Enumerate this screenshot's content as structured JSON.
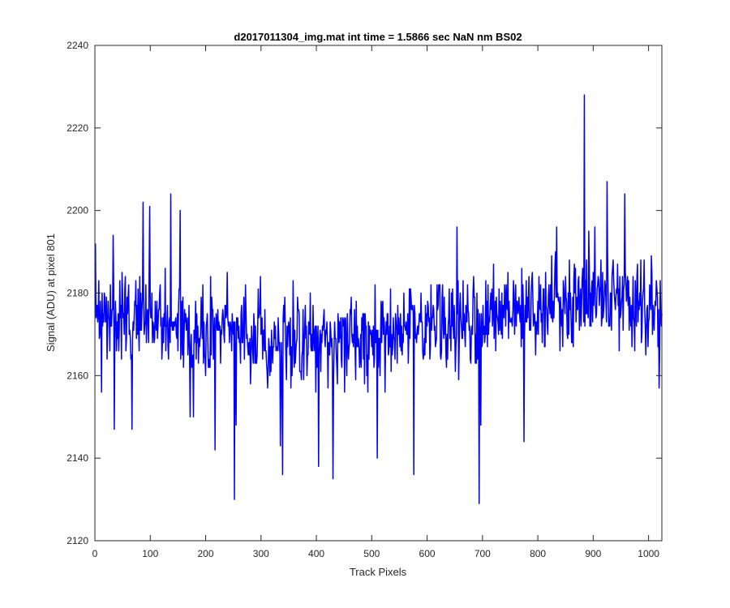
{
  "chart_data": {
    "type": "line",
    "title": "d2017011304_img.mat int time = 1.5866 sec  NaN nm BS02",
    "xlabel": "Track Pixels",
    "ylabel": "Signal (ADU) at pixel 801",
    "xlim": [
      0,
      1024
    ],
    "ylim": [
      2120,
      2240
    ],
    "xticks": [
      0,
      100,
      200,
      300,
      400,
      500,
      600,
      700,
      800,
      900,
      1000
    ],
    "yticks": [
      2120,
      2140,
      2160,
      2180,
      2200,
      2220,
      2240
    ],
    "grid": false,
    "legend": "none",
    "line_color": "#0000ff",
    "series": [
      {
        "x_start": 1,
        "x_step": 1,
        "y_mean": [
          [
            0,
            2175
          ],
          [
            100,
            2173
          ],
          [
            200,
            2171
          ],
          [
            300,
            2170
          ],
          [
            400,
            2168
          ],
          [
            500,
            2169
          ],
          [
            600,
            2171
          ],
          [
            700,
            2174
          ],
          [
            800,
            2176
          ],
          [
            900,
            2180
          ],
          [
            1024,
            2177
          ]
        ],
        "y_amplitude": 8,
        "n_points": 1024,
        "spikes": [
          [
            1,
            2192
          ],
          [
            12,
            2156
          ],
          [
            33,
            2194
          ],
          [
            35,
            2147
          ],
          [
            67,
            2147
          ],
          [
            87,
            2202
          ],
          [
            99,
            2201
          ],
          [
            137,
            2204
          ],
          [
            154,
            2200
          ],
          [
            172,
            2150
          ],
          [
            178,
            2150
          ],
          [
            217,
            2142
          ],
          [
            252,
            2130
          ],
          [
            255,
            2148
          ],
          [
            335,
            2143
          ],
          [
            339,
            2136
          ],
          [
            404,
            2138
          ],
          [
            430,
            2135
          ],
          [
            510,
            2140
          ],
          [
            576,
            2136
          ],
          [
            654,
            2196
          ],
          [
            694,
            2129
          ],
          [
            697,
            2148
          ],
          [
            775,
            2144
          ],
          [
            834,
            2196
          ],
          [
            884,
            2228
          ],
          [
            892,
            2195
          ],
          [
            903,
            2196
          ],
          [
            925,
            2207
          ],
          [
            957,
            2204
          ],
          [
            1019,
            2157
          ]
        ]
      }
    ]
  }
}
